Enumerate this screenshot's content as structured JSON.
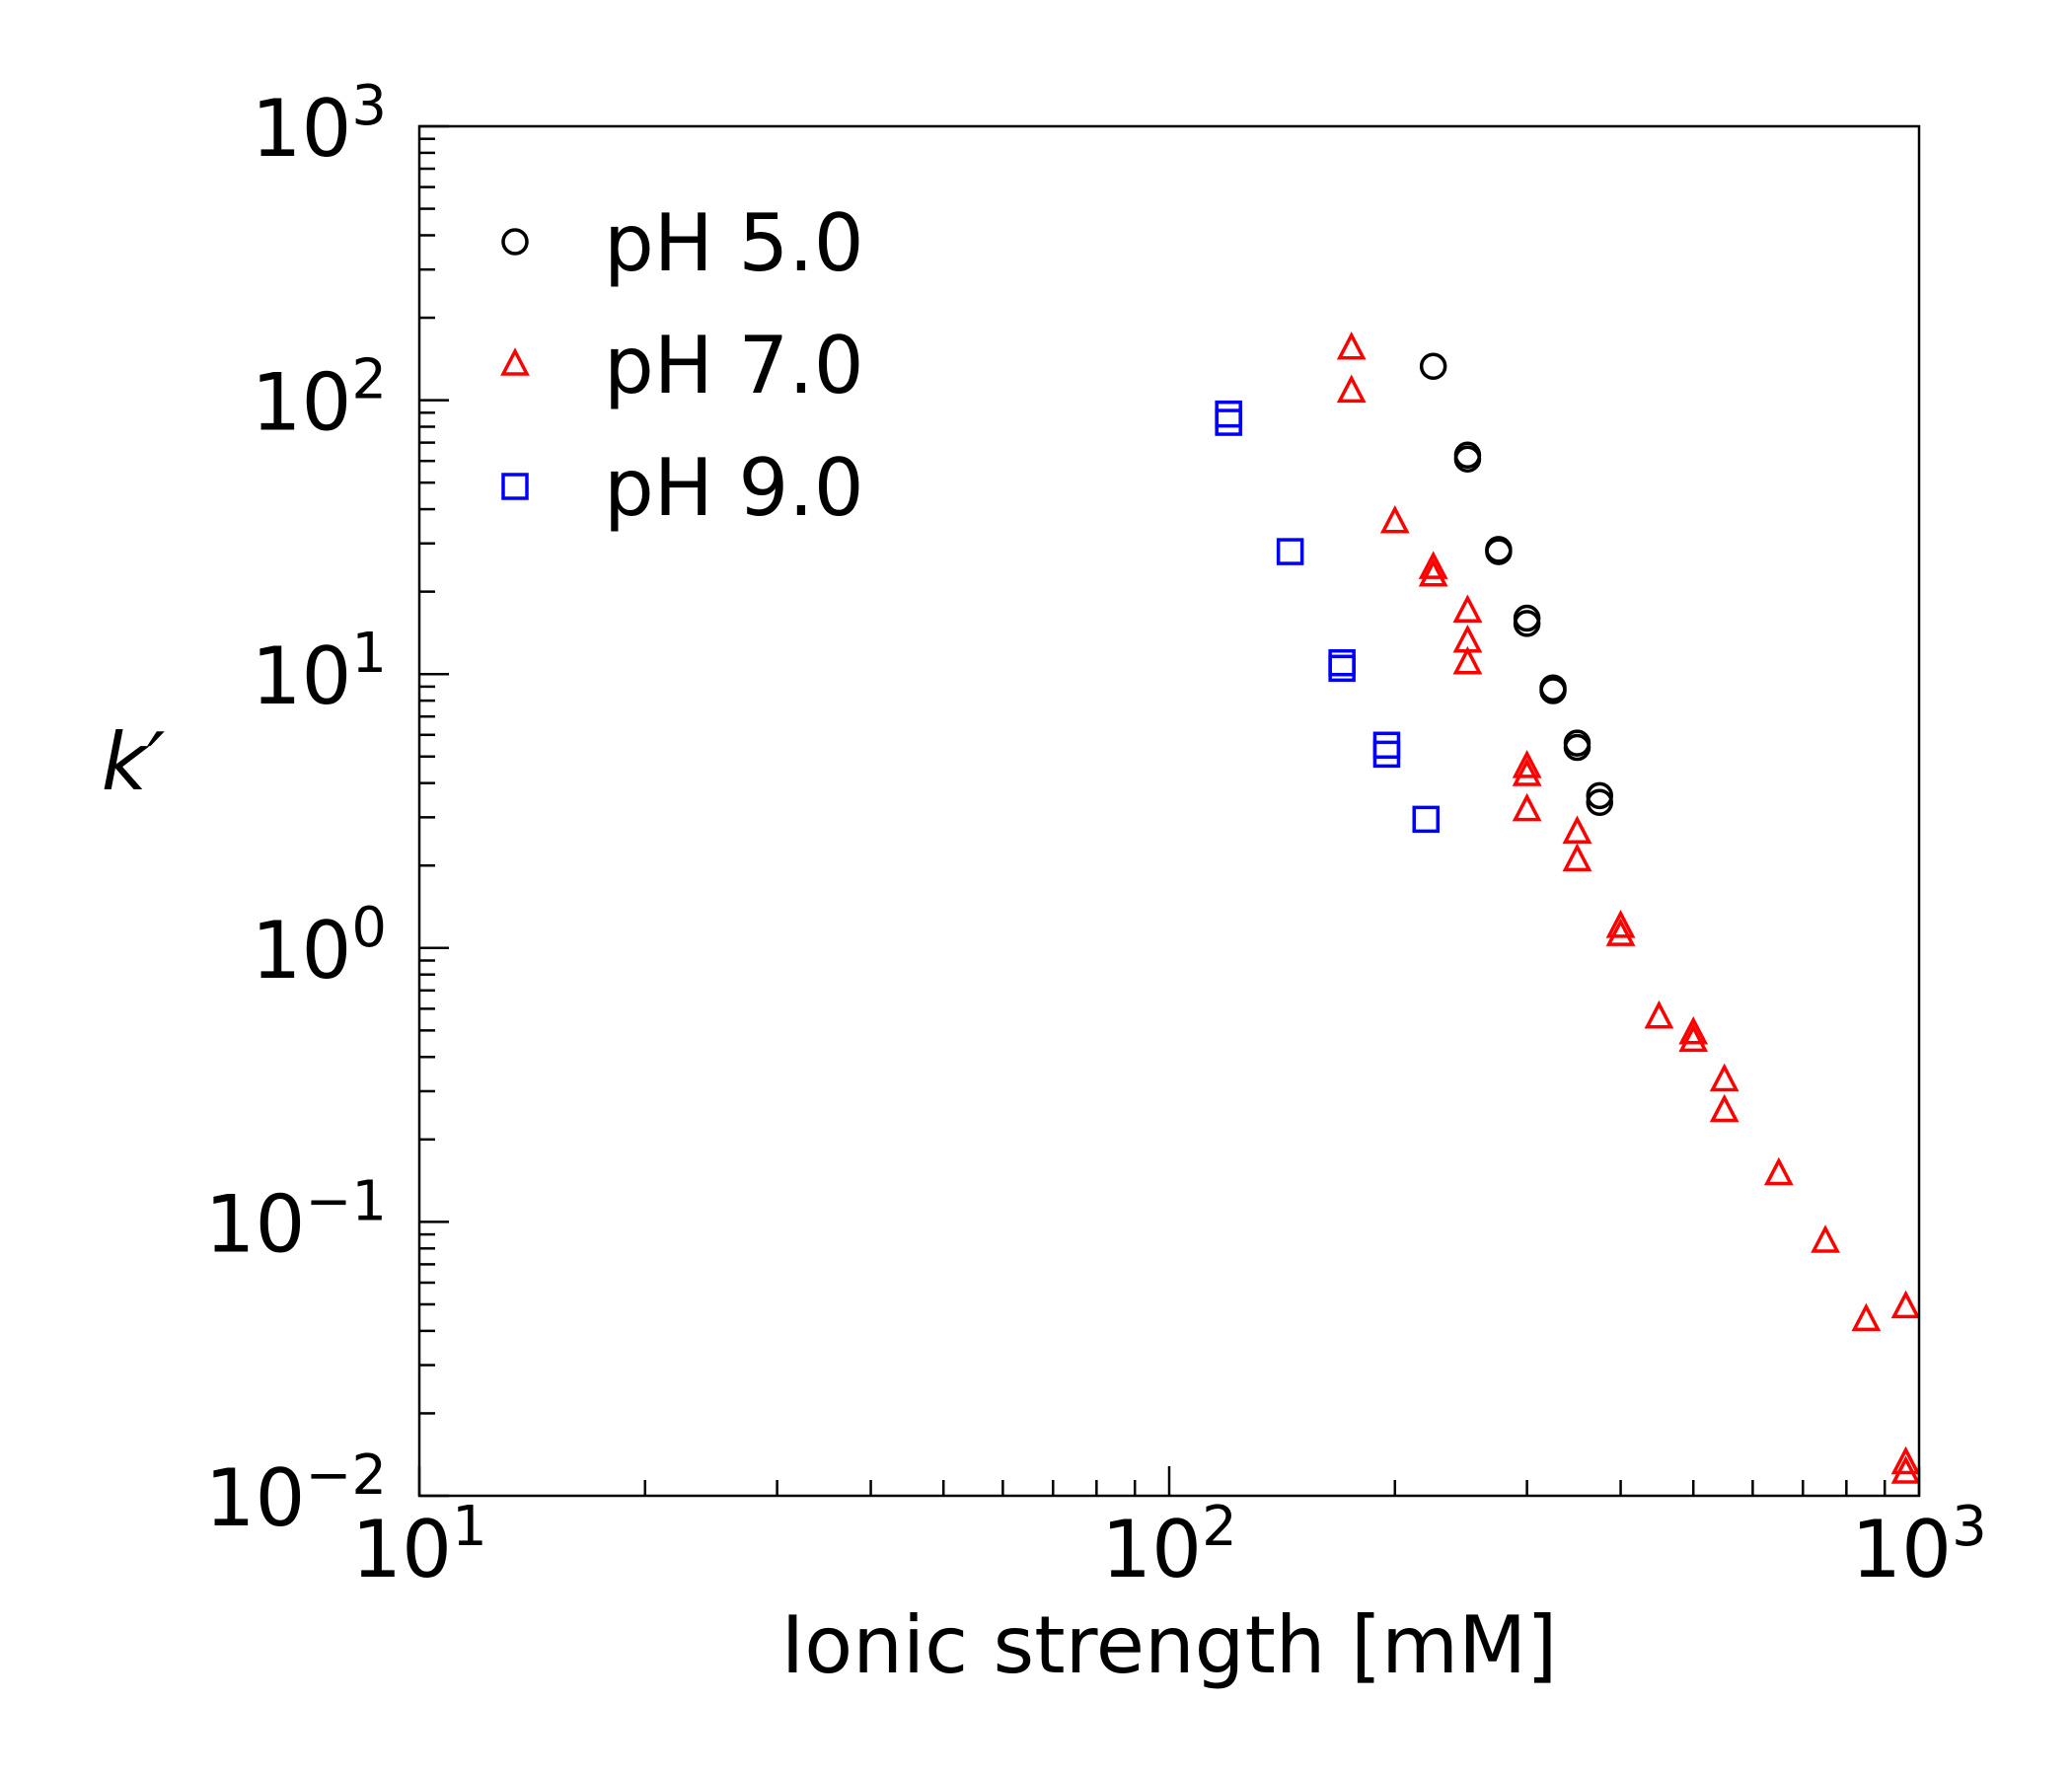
{
  "chart_data": {
    "type": "scatter",
    "xscale": "log",
    "yscale": "log",
    "xlabel": "Ionic strength [mM]",
    "ylabel": "k′",
    "xlim": [
      10,
      1000
    ],
    "ylim": [
      0.01,
      1000
    ],
    "x_ticks": [
      {
        "value": 10,
        "base": "10",
        "exp": "1"
      },
      {
        "value": 100,
        "base": "10",
        "exp": "2"
      },
      {
        "value": 1000,
        "base": "10",
        "exp": "3"
      }
    ],
    "y_ticks": [
      {
        "value": 0.01,
        "base": "10",
        "exp": "−2"
      },
      {
        "value": 0.1,
        "base": "10",
        "exp": "−1"
      },
      {
        "value": 1,
        "base": "10",
        "exp": "0"
      },
      {
        "value": 10,
        "base": "10",
        "exp": "1"
      },
      {
        "value": 100,
        "base": "10",
        "exp": "2"
      },
      {
        "value": 1000,
        "base": "10",
        "exp": "3"
      }
    ],
    "grid": false,
    "legend_position": "top-left",
    "series": [
      {
        "name": "pH 5.0",
        "marker": "circle",
        "color": "#000000",
        "points": [
          [
            225,
            133
          ],
          [
            250,
            63
          ],
          [
            250,
            61
          ],
          [
            275,
            28.5
          ],
          [
            275,
            28
          ],
          [
            300,
            16
          ],
          [
            300,
            15.3
          ],
          [
            325,
            8.9
          ],
          [
            325,
            8.7
          ],
          [
            350,
            5.6
          ],
          [
            350,
            5.4
          ],
          [
            375,
            3.6
          ],
          [
            375,
            3.4
          ]
        ]
      },
      {
        "name": "pH 7.0",
        "marker": "triangle",
        "color": "#ff0000",
        "points": [
          [
            175,
            155
          ],
          [
            175,
            108
          ],
          [
            200,
            36
          ],
          [
            225,
            24.5
          ],
          [
            225,
            23
          ],
          [
            250,
            17
          ],
          [
            250,
            13.2
          ],
          [
            250,
            11
          ],
          [
            300,
            4.6
          ],
          [
            300,
            4.3
          ],
          [
            300,
            3.2
          ],
          [
            350,
            2.65
          ],
          [
            350,
            2.1
          ],
          [
            400,
            1.2
          ],
          [
            400,
            1.12
          ],
          [
            450,
            0.56
          ],
          [
            500,
            0.49
          ],
          [
            500,
            0.46
          ],
          [
            550,
            0.33
          ],
          [
            550,
            0.255
          ],
          [
            650,
            0.15
          ],
          [
            750,
            0.085
          ],
          [
            850,
            0.044
          ],
          [
            960,
            0.049
          ],
          [
            960,
            0.0132
          ],
          [
            960,
            0.0122
          ]
        ]
      },
      {
        "name": "pH 9.0",
        "marker": "square",
        "color": "#0000ff",
        "points": [
          [
            120,
            89
          ],
          [
            120,
            83
          ],
          [
            145,
            28
          ],
          [
            170,
            11
          ],
          [
            170,
            10.5
          ],
          [
            195,
            5.5
          ],
          [
            195,
            5.1
          ],
          [
            220,
            2.95
          ]
        ]
      }
    ]
  }
}
